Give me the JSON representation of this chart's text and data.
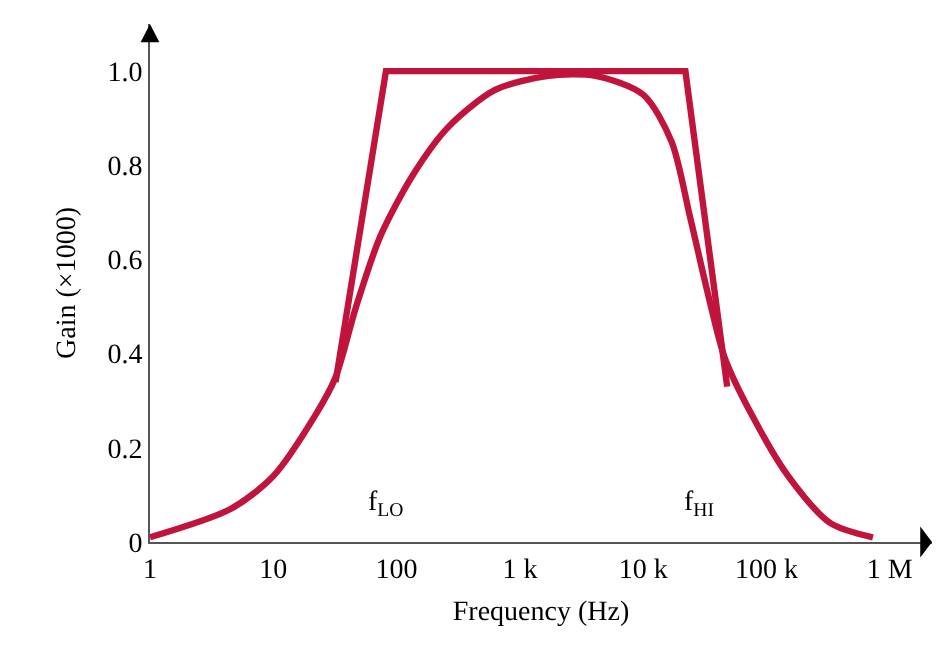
{
  "chart_data": {
    "type": "line",
    "xlabel": "Frequency (Hz)",
    "ylabel": "Gain (×1000)",
    "log": "x",
    "grid": false,
    "marker": "none",
    "line_style": "solid",
    "xlim": [
      1,
      2200000
    ],
    "xticks": [
      1,
      10,
      100,
      {
        "value": 1000,
        "label": "1 k"
      },
      {
        "value": 10000,
        "label": "10 k"
      },
      {
        "value": 100000,
        "label": "100 k"
      },
      {
        "value": 1000000,
        "label": "1 M"
      }
    ],
    "ylim": [
      0,
      1.1
    ],
    "yticks": [
      0,
      0.2,
      0.4,
      0.6,
      0.8,
      {
        "value": 1,
        "label": "1.0"
      }
    ],
    "annotations": [
      "f$_{LO}$",
      "f$_{HI}$"
    ],
    "series": [
      {
        "color": "#c0143c",
        "x": [
          32,
          82,
          22000,
          48000
        ],
        "values": [
          0.34,
          1.0,
          1.0,
          0.33
        ]
      },
      {
        "color": "#c0143c",
        "x": [
          1,
          4.5,
          10,
          22,
          32,
          47,
          74,
          136,
          260,
          630,
          1700,
          4100,
          10000,
          17000,
          24000,
          34000,
          46000,
          76000,
          150000,
          330000,
          730000
        ],
        "values": [
          0.01,
          0.07,
          0.14,
          0.27,
          0.35,
          0.5,
          0.65,
          0.78,
          0.88,
          0.96,
          0.99,
          0.99,
          0.95,
          0.85,
          0.69,
          0.52,
          0.39,
          0.27,
          0.14,
          0.04,
          0.01
        ]
      }
    ]
  }
}
